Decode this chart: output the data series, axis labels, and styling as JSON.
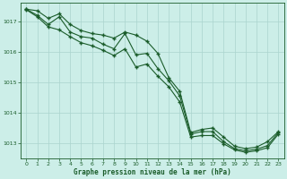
{
  "xlabel": "Graphe pression niveau de la mer (hPa)",
  "background_color": "#cceee8",
  "grid_color": "#aad4ce",
  "line_color": "#1a5c2a",
  "marker_color": "#1a5c2a",
  "xlim": [
    -0.5,
    23.5
  ],
  "ylim": [
    1012.5,
    1017.6
  ],
  "yticks": [
    1013,
    1014,
    1015,
    1016,
    1017
  ],
  "xticks": [
    0,
    1,
    2,
    3,
    4,
    5,
    6,
    7,
    8,
    9,
    10,
    11,
    12,
    13,
    14,
    15,
    16,
    17,
    18,
    19,
    20,
    21,
    22,
    23
  ],
  "series1_x": [
    0,
    1,
    2,
    3,
    4,
    5,
    6,
    7,
    8,
    9,
    10,
    11,
    12,
    13,
    14,
    15,
    16,
    17,
    18,
    19,
    20,
    21,
    22,
    23
  ],
  "series1_y": [
    1017.4,
    1017.35,
    1017.1,
    1017.25,
    1016.9,
    1016.7,
    1016.6,
    1016.55,
    1016.45,
    1016.65,
    1016.55,
    1016.35,
    1015.95,
    1015.15,
    1014.7,
    1013.35,
    1013.45,
    1013.5,
    1013.2,
    1012.9,
    1012.82,
    1012.87,
    1013.05,
    1013.38
  ],
  "series2_x": [
    0,
    1,
    2,
    3,
    4,
    5,
    6,
    7,
    8,
    9,
    10,
    11,
    12,
    13,
    14,
    15,
    16,
    17,
    18,
    19,
    20,
    21,
    22,
    23
  ],
  "series2_y": [
    1017.4,
    1017.2,
    1016.9,
    1017.15,
    1016.65,
    1016.5,
    1016.45,
    1016.25,
    1016.1,
    1016.6,
    1015.9,
    1015.95,
    1015.45,
    1015.05,
    1014.55,
    1013.3,
    1013.38,
    1013.38,
    1013.05,
    1012.82,
    1012.75,
    1012.8,
    1012.92,
    1013.35
  ],
  "series3_x": [
    0,
    1,
    2,
    3,
    4,
    5,
    6,
    7,
    8,
    9,
    10,
    11,
    12,
    13,
    14,
    15,
    16,
    17,
    18,
    19,
    20,
    21,
    22,
    23
  ],
  "series3_y": [
    1017.38,
    1017.15,
    1016.82,
    1016.72,
    1016.5,
    1016.3,
    1016.2,
    1016.05,
    1015.88,
    1016.1,
    1015.5,
    1015.6,
    1015.2,
    1014.85,
    1014.35,
    1013.2,
    1013.25,
    1013.25,
    1012.98,
    1012.78,
    1012.7,
    1012.75,
    1012.85,
    1013.3
  ]
}
